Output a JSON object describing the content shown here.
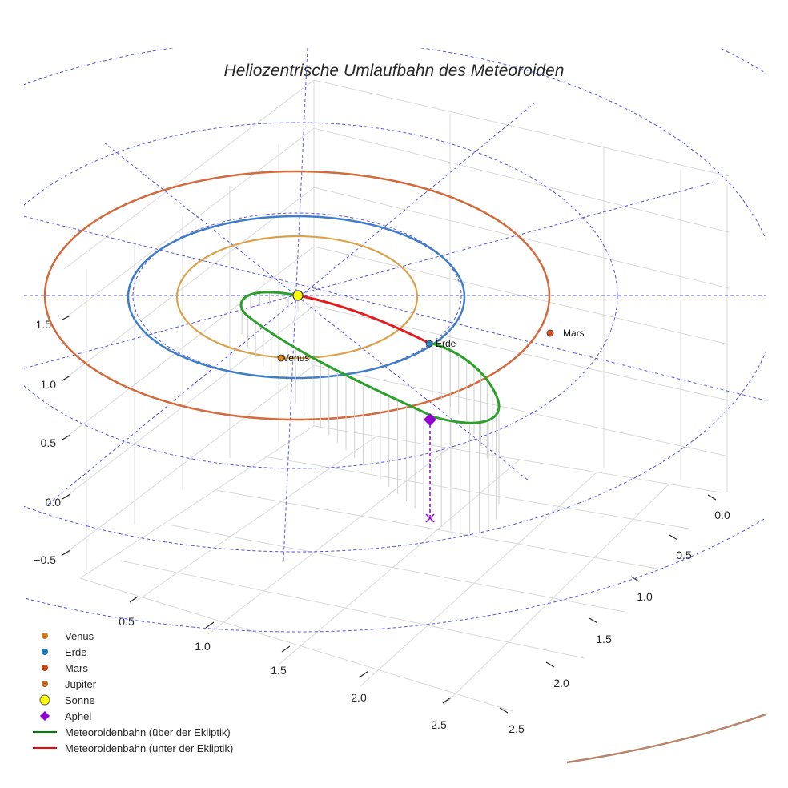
{
  "chart_data": {
    "type": "line",
    "projection": "3d",
    "title": "Heliozentrische Umlaufbahn des Meteoroiden",
    "xlabel": "",
    "ylabel": "",
    "zlabel": "",
    "axes": {
      "z_ticks": [
        "−0.5",
        "0.0",
        "0.5",
        "1.0",
        "1.5"
      ],
      "x_ticks": [
        "0.5",
        "1.0",
        "1.5",
        "2.0",
        "2.5"
      ],
      "y_ticks": [
        "0.0",
        "0.5",
        "1.0",
        "1.5",
        "2.0",
        "2.5"
      ]
    },
    "orbit_radii_au": {
      "Venus": 0.72,
      "Erde": 1.0,
      "Mars": 1.52,
      "Jupiter": 5.2
    },
    "planets": [
      {
        "name": "Venus",
        "label": "Venus",
        "color": "#d98c26"
      },
      {
        "name": "Erde",
        "label": "Erde",
        "color": "#2a7fbf"
      },
      {
        "name": "Mars",
        "label": "Mars",
        "color": "#d94a1e"
      }
    ],
    "sun": {
      "name": "Sonne",
      "color": "#ffff00"
    },
    "aphel": {
      "name": "Aphel",
      "color": "#9400d3"
    },
    "series": [
      {
        "name": "Meteoroidenbahn (über der Ekliptik)",
        "color": "#2ca02c"
      },
      {
        "name": "Meteoroidenbahn (unter der Ekliptik)",
        "color": "#e41a1c"
      }
    ],
    "legend": [
      {
        "label": "Venus",
        "marker": "circle",
        "color": "#c8781e"
      },
      {
        "label": "Erde",
        "marker": "circle",
        "color": "#1f77b4"
      },
      {
        "label": "Mars",
        "marker": "circle",
        "color": "#c1440e"
      },
      {
        "label": "Jupiter",
        "marker": "circle",
        "color": "#b5651d"
      },
      {
        "label": "Sonne",
        "marker": "circle-large",
        "color": "#ffff00"
      },
      {
        "label": "Aphel",
        "marker": "diamond",
        "color": "#9400d3"
      },
      {
        "label": "Meteoroidenbahn (über der Ekliptik)",
        "marker": "line",
        "color": "#008000"
      },
      {
        "label": "Meteoroidenbahn (unter der Ekliptik)",
        "marker": "line",
        "color": "#ff0000"
      }
    ],
    "legend_position": "bottom-left"
  }
}
